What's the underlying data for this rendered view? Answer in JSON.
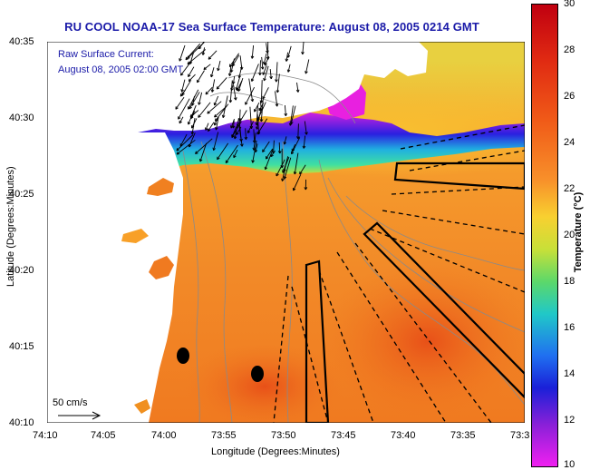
{
  "title": "RU COOL  NOAA-17  Sea Surface Temperature:  August 08, 2005 0214 GMT",
  "overlay": {
    "line1": "Raw Surface Current:",
    "line2": "August 08, 2005 02:00 GMT"
  },
  "axes": {
    "xlabel": "Longitude (Degrees:Minutes)",
    "ylabel": "Latitude (Degrees:Minutes)",
    "x_ticks": [
      "74:10",
      "74:05",
      "74:00",
      "73:55",
      "73:50",
      "73:45",
      "73:40",
      "73:35",
      "73:3"
    ],
    "y_ticks": [
      "40:35",
      "40:30",
      "40:25",
      "40:20",
      "40:15",
      "40:10"
    ]
  },
  "scale": {
    "label": "50 cm/s"
  },
  "colorbar": {
    "title": "Temperature (°C)",
    "ticks": [
      "30",
      "28",
      "26",
      "24",
      "22",
      "20",
      "18",
      "16",
      "14",
      "12",
      "10"
    ]
  },
  "colors": {
    "title": "#1a1aa8",
    "land": "#ffffff",
    "warm_water": "#f07a20",
    "cold_water": "#d020e0"
  }
}
